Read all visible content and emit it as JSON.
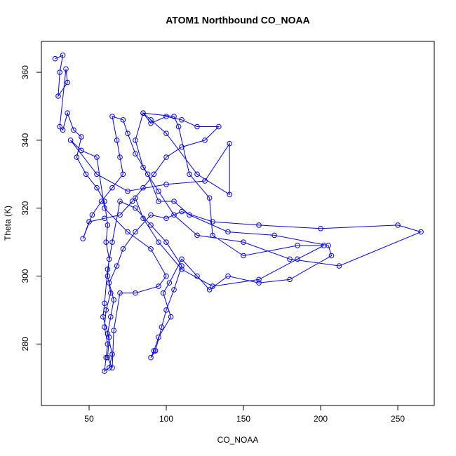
{
  "chart_data": {
    "type": "line",
    "markers": true,
    "title": "ATOM1 Northbound CO_NOAA",
    "x_label": "CO_NOAA",
    "y_label": "Theta (K)",
    "color": "#0000ff",
    "xlim": [
      19.1,
      273.6
    ],
    "ylim": [
      261.9,
      369.1
    ],
    "xticks": [
      50,
      100,
      150,
      200,
      250
    ],
    "yticks": [
      280,
      300,
      320,
      340,
      360
    ],
    "x": [
      28,
      33,
      31,
      30,
      36,
      35,
      31,
      33,
      36,
      40,
      45,
      42,
      48,
      55,
      60,
      62,
      61,
      63,
      62,
      64,
      61,
      60,
      62,
      61,
      60,
      63,
      65,
      62,
      64,
      66,
      63,
      68,
      72,
      80,
      90,
      100,
      110,
      130,
      160,
      200,
      250,
      265,
      212,
      180,
      150,
      120,
      105,
      95,
      85,
      80,
      85,
      90,
      100,
      110,
      120,
      134,
      125,
      110,
      100,
      92,
      85,
      78,
      70,
      60,
      50,
      46,
      52,
      58,
      65,
      72,
      70,
      68,
      65,
      72,
      75,
      80,
      88,
      95,
      105,
      115,
      140,
      170,
      205,
      207,
      180,
      160,
      140,
      128,
      120,
      110,
      102,
      98,
      103,
      95,
      92,
      90,
      93,
      97,
      100,
      105,
      110,
      100,
      90,
      80,
      70,
      65,
      62,
      60,
      59,
      63,
      62,
      65,
      66,
      70,
      80,
      95,
      100,
      90,
      75,
      60,
      55,
      45,
      38,
      55,
      75,
      100,
      125,
      141,
      141,
      120,
      100,
      90,
      85,
      105,
      108,
      115,
      128,
      130,
      150,
      185,
      202,
      185,
      160,
      130,
      110,
      95,
      85,
      80
    ],
    "values": [
      364,
      365,
      360,
      353,
      357,
      361,
      344,
      343,
      348,
      343,
      341,
      335,
      330,
      326,
      322,
      315,
      310,
      305,
      300,
      295,
      290,
      285,
      280,
      276,
      272,
      273,
      277,
      283,
      288,
      293,
      298,
      303,
      308,
      313,
      318,
      317,
      319,
      316,
      315,
      314,
      315,
      313,
      303,
      305,
      310,
      312,
      318,
      325,
      332,
      340,
      348,
      345,
      347,
      346,
      344,
      344,
      340,
      338,
      335,
      330,
      326,
      322,
      318,
      317,
      316,
      311,
      318,
      322,
      326,
      330,
      335,
      340,
      347,
      346,
      342,
      336,
      330,
      322,
      322,
      318,
      313,
      312,
      309,
      306,
      299,
      298,
      300,
      296,
      300,
      305,
      298,
      295,
      288,
      282,
      278,
      276,
      278,
      285,
      290,
      296,
      303,
      310,
      315,
      320,
      322,
      310,
      302,
      292,
      288,
      282,
      276,
      273,
      284,
      295,
      295,
      297,
      300,
      308,
      313,
      320,
      335,
      337,
      340,
      330,
      325,
      327,
      328,
      339,
      324,
      330,
      342,
      346,
      348,
      347,
      344,
      330,
      323,
      312,
      306,
      309,
      309,
      305,
      299,
      297,
      302,
      310,
      317,
      323
    ]
  }
}
